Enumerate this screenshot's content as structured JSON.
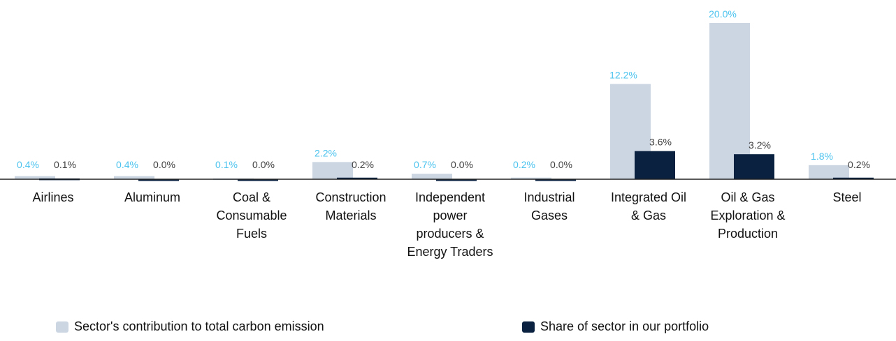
{
  "chart_data": {
    "type": "bar",
    "categories": [
      "Airlines",
      "Aluminum",
      "Coal & Consumable Fuels",
      "Construction Materials",
      "Independent power producers & Energy Traders",
      "Industrial Gases",
      "Integrated Oil & Gas",
      "Oil & Gas Exploration & Production",
      "Steel"
    ],
    "series": [
      {
        "name": "Sector's contribution to total carbon emission",
        "color": "#ccd6e3",
        "label_color": "#4cc3ee",
        "values": [
          0.4,
          0.4,
          0.1,
          2.2,
          0.7,
          0.2,
          12.2,
          20.0,
          1.8
        ],
        "value_labels": [
          "0.4%",
          "0.4%",
          "0.1%",
          "2.2%",
          "0.7%",
          "0.2%",
          "12.2%",
          "20.0%",
          "1.8%"
        ]
      },
      {
        "name": "Share of sector in our portfolio",
        "color": "#0a2240",
        "label_color": "#404040",
        "values": [
          0.1,
          0.0,
          0.0,
          0.2,
          0.0,
          0.0,
          3.6,
          3.2,
          0.2
        ],
        "value_labels": [
          "0.1%",
          "0.0%",
          "0.0%",
          "0.2%",
          "0.0%",
          "0.0%",
          "3.6%",
          "3.2%",
          "0.2%"
        ]
      }
    ],
    "ylim": [
      0,
      20
    ]
  }
}
